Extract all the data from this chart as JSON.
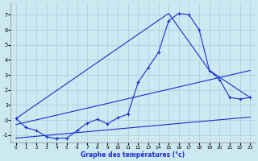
{
  "xlabel": "Graphe des températures (°c)",
  "bg_color": "#cce8f0",
  "grid_color": "#aaccdd",
  "line_color": "#1a2ecc",
  "xlim": [
    -0.5,
    23.5
  ],
  "ylim": [
    -1.5,
    7.8
  ],
  "xticks": [
    0,
    1,
    2,
    3,
    4,
    5,
    6,
    7,
    8,
    9,
    10,
    11,
    12,
    13,
    14,
    15,
    16,
    17,
    18,
    19,
    20,
    21,
    22,
    23
  ],
  "yticks": [
    -1,
    0,
    1,
    2,
    3,
    4,
    5,
    6,
    7
  ],
  "main_curve": {
    "x": [
      0,
      1,
      2,
      3,
      4,
      4,
      5,
      6,
      7,
      8,
      9,
      10,
      11,
      12,
      13,
      14,
      15,
      16,
      17,
      18,
      19,
      20,
      21,
      22,
      23
    ],
    "y": [
      0.1,
      -0.5,
      -0.7,
      -1.1,
      -1.25,
      -1.2,
      -1.2,
      -0.7,
      -0.2,
      0.05,
      -0.25,
      0.15,
      0.4,
      2.5,
      3.5,
      4.5,
      6.6,
      7.1,
      7.0,
      6.0,
      3.3,
      2.7,
      1.5,
      1.4,
      1.5
    ]
  },
  "line_upper": {
    "x": [
      0,
      23
    ],
    "y": [
      -0.3,
      3.3
    ]
  },
  "line_lower": {
    "x": [
      0,
      23
    ],
    "y": [
      -1.2,
      0.2
    ]
  },
  "line_triangle": {
    "x": [
      0,
      15,
      19,
      23
    ],
    "y": [
      0.1,
      7.1,
      3.3,
      1.5
    ]
  }
}
